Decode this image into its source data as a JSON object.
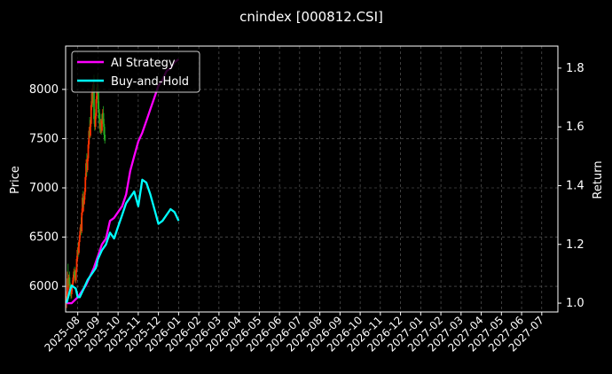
{
  "chart_data": {
    "type": "line",
    "title": "cnindex [000812.CSI]",
    "ylabel_left": "Price",
    "ylabel_right": "Return",
    "left_axis": {
      "range": [
        5740,
        8440
      ],
      "ticks": [
        6000,
        6500,
        7000,
        7500,
        8000
      ]
    },
    "right_axis": {
      "range": [
        0.97,
        1.875
      ],
      "ticks": [
        "1.0",
        "1.2",
        "1.4",
        "1.6",
        "1.8"
      ],
      "tick_values": [
        1.0,
        1.2,
        1.4,
        1.6,
        1.8
      ]
    },
    "x_tick_labels": [
      "2025-08",
      "2025-09",
      "2025-10",
      "2025-11",
      "2025-12",
      "2026-01",
      "2026-02",
      "2026-03",
      "2026-04",
      "2026-05",
      "2026-06",
      "2026-07",
      "2026-08",
      "2026-09",
      "2026-10",
      "2026-11",
      "2026-12",
      "2027-01",
      "2027-02",
      "2027-03",
      "2027-04",
      "2027-05",
      "2027-06",
      "2027-07"
    ],
    "x_range_months": [
      -0.6,
      23.8
    ],
    "grid": true,
    "legend": {
      "placement": "top-left",
      "entries": [
        {
          "label": "AI Strategy",
          "color": "#ff00ff"
        },
        {
          "label": "Buy-and-Hold",
          "color": "#00ffff"
        }
      ]
    },
    "candles": {
      "up_color": "#ff3300",
      "down_color": "#22aa22",
      "start_month": -0.55,
      "step_months": 0.0357,
      "ohlc": [
        [
          5820,
          5950,
          5780,
          5900
        ],
        [
          5900,
          6150,
          5880,
          6080
        ],
        [
          6080,
          6230,
          5990,
          6010
        ],
        [
          6010,
          6120,
          5960,
          6090
        ],
        [
          6090,
          6150,
          5980,
          6020
        ],
        [
          6020,
          6040,
          5900,
          5950
        ],
        [
          5950,
          5990,
          5870,
          5920
        ],
        [
          5920,
          6010,
          5880,
          5990
        ],
        [
          5990,
          6060,
          5950,
          6030
        ],
        [
          6030,
          6120,
          6000,
          6090
        ],
        [
          6090,
          6180,
          6050,
          6150
        ],
        [
          6150,
          6200,
          6080,
          6110
        ],
        [
          6110,
          6160,
          6040,
          6060
        ],
        [
          6060,
          6190,
          6030,
          6170
        ],
        [
          6170,
          6310,
          6140,
          6280
        ],
        [
          6280,
          6400,
          6250,
          6370
        ],
        [
          6370,
          6450,
          6300,
          6340
        ],
        [
          6340,
          6470,
          6320,
          6450
        ],
        [
          6450,
          6560,
          6410,
          6520
        ],
        [
          6520,
          6630,
          6490,
          6600
        ],
        [
          6600,
          6700,
          6520,
          6560
        ],
        [
          6560,
          6790,
          6540,
          6750
        ],
        [
          6750,
          6940,
          6720,
          6900
        ],
        [
          6900,
          6970,
          6800,
          6830
        ],
        [
          6830,
          6920,
          6760,
          6880
        ],
        [
          6880,
          7000,
          6840,
          6960
        ],
        [
          6960,
          7150,
          6930,
          7110
        ],
        [
          7110,
          7290,
          7080,
          7250
        ],
        [
          7250,
          7350,
          7120,
          7180
        ],
        [
          7180,
          7330,
          7160,
          7300
        ],
        [
          7300,
          7480,
          7270,
          7440
        ],
        [
          7440,
          7620,
          7400,
          7580
        ],
        [
          7580,
          7720,
          7500,
          7530
        ],
        [
          7530,
          7690,
          7510,
          7650
        ],
        [
          7650,
          7880,
          7620,
          7840
        ],
        [
          7840,
          8010,
          7790,
          7960
        ],
        [
          7960,
          8050,
          7820,
          7860
        ],
        [
          7860,
          8080,
          7840,
          8050
        ],
        [
          8050,
          8150,
          7650,
          7700
        ],
        [
          7700,
          7800,
          7580,
          7620
        ],
        [
          7620,
          7760,
          7590,
          7730
        ],
        [
          7730,
          7930,
          7700,
          7900
        ],
        [
          7900,
          8060,
          7860,
          8020
        ],
        [
          8020,
          8150,
          7950,
          7980
        ],
        [
          7980,
          8050,
          7760,
          7800
        ],
        [
          7800,
          7880,
          7650,
          7700
        ],
        [
          7700,
          7760,
          7560,
          7600
        ],
        [
          7600,
          7700,
          7550,
          7660
        ],
        [
          7660,
          7750,
          7540,
          7580
        ],
        [
          7580,
          7700,
          7560,
          7680
        ],
        [
          7680,
          7800,
          7650,
          7760
        ],
        [
          7760,
          7830,
          7620,
          7650
        ],
        [
          7650,
          7700,
          7500,
          7540
        ],
        [
          7540,
          7620,
          7450,
          7480
        ]
      ]
    },
    "series": [
      {
        "name": "AI Strategy",
        "axis": "right",
        "color": "#ff00ff",
        "x": [
          -0.55,
          -0.3,
          0,
          0.2,
          0.4,
          0.6,
          0.8,
          1.0,
          1.2,
          1.4,
          1.6,
          1.8,
          2.0,
          2.2,
          2.4,
          2.6,
          2.8,
          3.0,
          3.2,
          3.4,
          3.6,
          3.8,
          4.0,
          4.2,
          4.4,
          4.6,
          4.8,
          5.0
        ],
        "values": [
          1.0,
          1.0,
          1.02,
          1.04,
          1.06,
          1.09,
          1.12,
          1.16,
          1.2,
          1.22,
          1.28,
          1.29,
          1.31,
          1.33,
          1.37,
          1.45,
          1.5,
          1.55,
          1.58,
          1.62,
          1.66,
          1.7,
          1.74,
          1.76,
          1.79,
          1.8,
          1.82,
          1.83
        ]
      },
      {
        "name": "Buy-and-Hold",
        "axis": "right",
        "color": "#00ffff",
        "x": [
          -0.55,
          -0.4,
          -0.3,
          -0.1,
          0,
          0.1,
          0.3,
          0.5,
          0.7,
          0.9,
          1.0,
          1.2,
          1.4,
          1.6,
          1.8,
          2.0,
          2.2,
          2.4,
          2.6,
          2.8,
          3.0,
          3.2,
          3.4,
          3.6,
          3.8,
          4.0,
          4.2,
          4.4,
          4.6,
          4.8,
          5.0
        ],
        "values": [
          1.0,
          1.04,
          1.06,
          1.05,
          1.02,
          1.02,
          1.05,
          1.08,
          1.1,
          1.12,
          1.15,
          1.18,
          1.2,
          1.24,
          1.22,
          1.26,
          1.3,
          1.34,
          1.36,
          1.38,
          1.33,
          1.42,
          1.41,
          1.37,
          1.32,
          1.27,
          1.28,
          1.3,
          1.32,
          1.31,
          1.28
        ]
      }
    ]
  }
}
